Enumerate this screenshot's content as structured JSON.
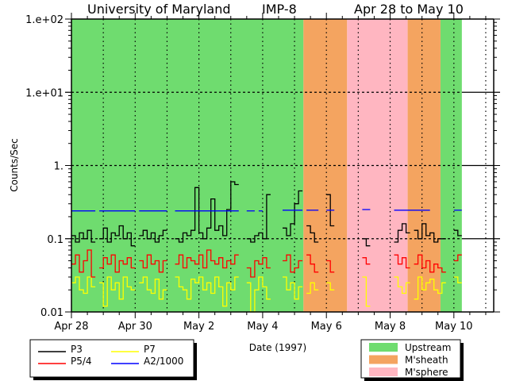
{
  "header": {
    "institution": "University of Maryland",
    "spacecraft": "IMP-8",
    "date_range": "Apr 28 to May 10"
  },
  "chart_data": {
    "type": "line",
    "title": "University of Maryland   IMP-8   Apr 28 to May 10",
    "xlabel": "Date (1997)",
    "ylabel": "Counts/Sec",
    "yscale": "log",
    "ylim": [
      0.01,
      100
    ],
    "xlim_days_from_apr28": [
      0,
      13.25
    ],
    "x_step_days": 0.125,
    "grid": true,
    "x_ticks": [
      {
        "day": 0,
        "label": "Apr 28"
      },
      {
        "day": 2,
        "label": "Apr 30"
      },
      {
        "day": 4,
        "label": "May 2"
      },
      {
        "day": 6,
        "label": "May 4"
      },
      {
        "day": 8,
        "label": "May 6"
      },
      {
        "day": 10,
        "label": "May 8"
      },
      {
        "day": 12,
        "label": "May 10"
      }
    ],
    "y_ticks": [
      {
        "value": 100,
        "label": "1.e+02"
      },
      {
        "value": 10,
        "label": "1.e+01"
      },
      {
        "value": 1,
        "label": "1."
      },
      {
        "value": 0.1,
        "label": "0.1"
      },
      {
        "value": 0.01,
        "label": "0.01"
      }
    ],
    "regions": [
      {
        "type": "upstream",
        "start": 0,
        "end": 7.28
      },
      {
        "type": "msheath",
        "start": 7.28,
        "end": 8.65
      },
      {
        "type": "msphere",
        "start": 8.65,
        "end": 10.55
      },
      {
        "type": "msheath",
        "start": 10.55,
        "end": 11.58
      },
      {
        "type": "upstream",
        "start": 11.58,
        "end": 12.25
      }
    ],
    "region_legend": [
      {
        "key": "upstream",
        "label": "Upstream",
        "color": "#6fdc6f"
      },
      {
        "key": "msheath",
        "label": "M'sheath",
        "color": "#f4a460"
      },
      {
        "key": "msphere",
        "label": "M'sphere",
        "color": "#ffb6c1"
      }
    ],
    "series": [
      {
        "name": "P3",
        "color": "#000000",
        "values": [
          0.11,
          0.09,
          0.12,
          0.1,
          0.13,
          0.09,
          null,
          0.1,
          0.14,
          0.09,
          0.12,
          0.11,
          0.15,
          0.1,
          0.12,
          0.08,
          null,
          0.11,
          0.13,
          0.1,
          0.12,
          0.09,
          0.11,
          0.13,
          null,
          null,
          0.1,
          0.09,
          0.12,
          0.11,
          0.13,
          0.5,
          0.12,
          0.1,
          0.14,
          0.35,
          0.13,
          0.15,
          0.11,
          0.25,
          0.6,
          0.55,
          null,
          null,
          0.1,
          0.09,
          0.11,
          0.12,
          0.1,
          0.4,
          null,
          null,
          null,
          0.14,
          0.11,
          0.16,
          0.3,
          0.45,
          null,
          0.15,
          0.12,
          0.09,
          null,
          null,
          0.4,
          0.15,
          null,
          null,
          null,
          null,
          null,
          null,
          null,
          0.1,
          0.08,
          null,
          null,
          null,
          null,
          null,
          null,
          0.09,
          0.13,
          0.16,
          0.12,
          null,
          0.13,
          0.1,
          0.16,
          0.11,
          0.12,
          0.09,
          0.1,
          0.1,
          null,
          null,
          0.13,
          0.11
        ]
      },
      {
        "name": "P5/4",
        "color": "#ff0000",
        "values": [
          0.045,
          0.06,
          0.035,
          0.05,
          0.07,
          0.03,
          null,
          0.04,
          0.055,
          0.045,
          0.06,
          0.035,
          0.05,
          0.045,
          0.055,
          0.04,
          null,
          0.05,
          0.04,
          0.06,
          0.045,
          0.05,
          0.035,
          0.05,
          null,
          null,
          0.045,
          0.06,
          0.04,
          0.055,
          0.05,
          0.045,
          0.06,
          0.04,
          0.07,
          0.05,
          0.045,
          0.055,
          0.04,
          0.05,
          0.045,
          0.06,
          null,
          null,
          0.04,
          0.03,
          0.05,
          0.045,
          0.055,
          0.04,
          null,
          null,
          null,
          0.05,
          0.06,
          0.035,
          0.04,
          0.05,
          null,
          0.06,
          0.045,
          0.035,
          null,
          null,
          0.05,
          0.035,
          null,
          null,
          null,
          null,
          null,
          null,
          null,
          0.055,
          0.045,
          null,
          null,
          null,
          null,
          null,
          null,
          0.06,
          0.045,
          0.055,
          0.04,
          null,
          0.045,
          0.06,
          0.04,
          0.05,
          0.035,
          0.045,
          0.04,
          0.035,
          null,
          null,
          0.05,
          0.06
        ]
      },
      {
        "name": "P7",
        "color": "#ffff00",
        "values": [
          0.025,
          0.03,
          0.02,
          0.018,
          0.03,
          0.022,
          null,
          0.025,
          0.012,
          0.03,
          0.02,
          0.025,
          0.015,
          0.03,
          0.022,
          0.02,
          null,
          0.025,
          0.03,
          0.02,
          0.018,
          0.028,
          0.015,
          0.02,
          null,
          null,
          0.03,
          0.022,
          0.02,
          0.015,
          0.028,
          0.025,
          0.03,
          0.02,
          0.025,
          0.018,
          0.03,
          0.022,
          0.012,
          0.025,
          0.02,
          0.03,
          null,
          null,
          0.025,
          0.01,
          0.02,
          0.03,
          0.022,
          0.015,
          null,
          null,
          null,
          0.03,
          0.02,
          0.025,
          0.015,
          0.022,
          null,
          0.018,
          0.025,
          0.02,
          null,
          null,
          0.025,
          0.02,
          null,
          null,
          null,
          null,
          null,
          null,
          null,
          0.03,
          0.012,
          null,
          null,
          null,
          null,
          null,
          null,
          0.03,
          0.022,
          0.018,
          0.025,
          null,
          0.015,
          0.03,
          0.02,
          0.025,
          0.028,
          0.02,
          0.018,
          0.025,
          null,
          null,
          0.03,
          0.025
        ]
      },
      {
        "name": "A2/1000",
        "color": "#0000ff",
        "values": [
          0.24,
          0.24,
          0.24,
          0.24,
          0.24,
          0.24,
          null,
          0.24,
          0.24,
          0.24,
          0.24,
          0.24,
          0.24,
          0.24,
          0.24,
          0.24,
          null,
          0.24,
          0.24,
          0.24,
          0.24,
          0.24,
          0.24,
          0.24,
          null,
          null,
          0.24,
          0.24,
          0.24,
          0.24,
          0.24,
          0.24,
          0.24,
          0.24,
          0.24,
          0.24,
          0.24,
          0.24,
          0.24,
          0.24,
          0.24,
          0.24,
          null,
          null,
          0.24,
          0.24,
          null,
          0.24,
          null,
          null,
          null,
          null,
          null,
          0.245,
          0.245,
          0.245,
          0.245,
          0.245,
          null,
          0.245,
          0.245,
          0.245,
          null,
          null,
          0.245,
          0.245,
          null,
          null,
          null,
          null,
          null,
          null,
          null,
          0.25,
          0.25,
          null,
          null,
          null,
          null,
          null,
          null,
          0.245,
          0.245,
          0.245,
          0.245,
          0.245,
          0.245,
          0.245,
          0.245,
          0.245,
          null,
          null,
          null,
          null,
          null,
          null,
          0.245,
          0.245
        ]
      }
    ],
    "series_legend_placement": "bottom-left",
    "region_legend_placement": "bottom-right"
  }
}
